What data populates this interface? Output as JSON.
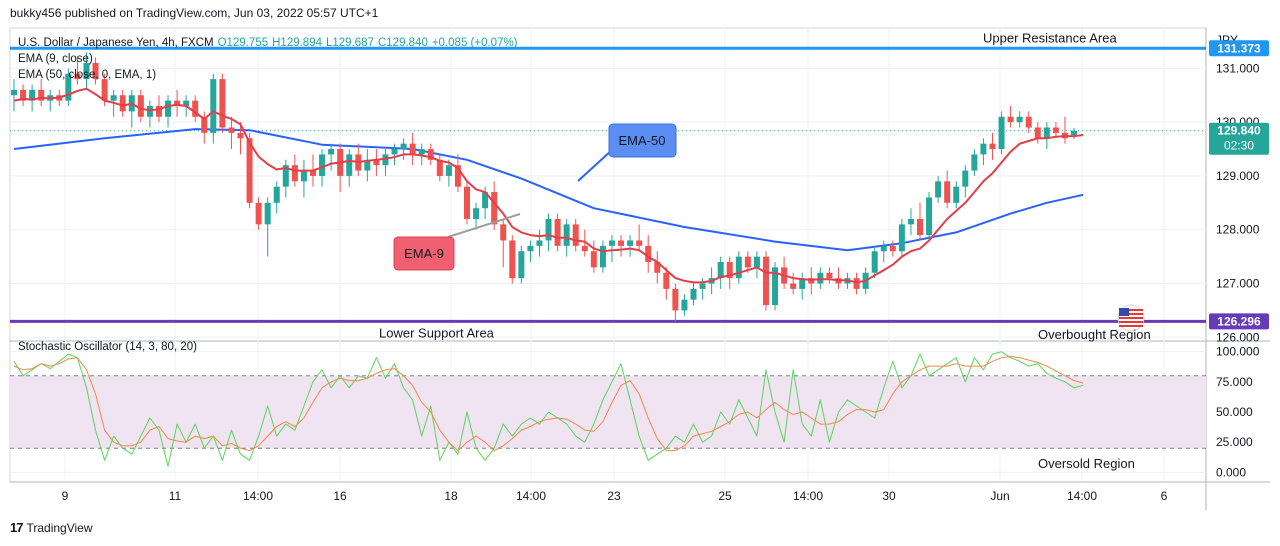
{
  "publisher_line": "bukky456 published on TradingView.com, Jun 03, 2022 05:57 UTC+1",
  "footer_brand": "TradingView",
  "colors": {
    "up": "#26a69a",
    "down": "#ef5350",
    "ema9": "#e33e4a",
    "ema50": "#2962ff",
    "resistance_line": "#2196f3",
    "support_line": "#673ab7",
    "stoch_k": "#5ad65a",
    "stoch_d": "#f2894b",
    "stoch_band": "#f0e4f2",
    "grid": "#eef0f3"
  },
  "icons": {
    "country_flag": "us-flag-icon",
    "brand": "tradingview-logo-icon"
  },
  "chart_data": [
    {
      "type": "candlestick",
      "symbol_line": {
        "name": "U.S. Dollar / Japanese Yen, 4h, FXCM",
        "open": "O129.755",
        "high": "H129.894",
        "low": "L129.687",
        "close": "C129.840",
        "change": "+0.085 (+0.07%)"
      },
      "indicators": [
        {
          "name": "EMA (9, close)",
          "label": "EMA-9"
        },
        {
          "name": "EMA (50, close, 0, EMA, 1)",
          "label": "EMA-50"
        }
      ],
      "currency": "JPY",
      "ylim": [
        125.95,
        131.75
      ],
      "y_ticks": [
        "131.000",
        "130.000",
        "129.000",
        "128.000",
        "127.000",
        "126.000"
      ],
      "x_ticks": [
        "9",
        "11",
        "14:00",
        "16",
        "18",
        "14:00",
        "23",
        "25",
        "14:00",
        "30",
        "Jun",
        "14:00",
        "6"
      ],
      "price_labels": {
        "resistance": "131.373",
        "last_price": "129.840",
        "countdown": "02:30",
        "support": "126.296"
      },
      "levels": [
        {
          "name": "Upper Resistance Area",
          "value": 131.373
        },
        {
          "name": "Lower Support Area",
          "value": 126.296
        }
      ],
      "last_price": 129.84,
      "candles": [
        [
          130.5,
          130.8,
          130.2,
          130.6
        ],
        [
          130.6,
          130.7,
          130.3,
          130.4
        ],
        [
          130.4,
          130.7,
          130.2,
          130.6
        ],
        [
          130.6,
          130.8,
          130.3,
          130.4
        ],
        [
          130.4,
          130.6,
          130.2,
          130.5
        ],
        [
          130.5,
          130.6,
          130.3,
          130.4
        ],
        [
          130.4,
          131.0,
          130.3,
          130.9
        ],
        [
          130.9,
          131.2,
          130.7,
          130.8
        ],
        [
          130.8,
          131.3,
          130.6,
          131.1
        ],
        [
          131.1,
          131.2,
          130.7,
          130.8
        ],
        [
          130.8,
          130.9,
          130.3,
          130.4
        ],
        [
          130.4,
          130.6,
          130.1,
          130.5
        ],
        [
          130.5,
          130.6,
          130.1,
          130.2
        ],
        [
          130.2,
          130.6,
          129.9,
          130.5
        ],
        [
          130.5,
          130.6,
          130.0,
          130.1
        ],
        [
          130.1,
          130.4,
          129.9,
          130.3
        ],
        [
          130.3,
          130.5,
          130.0,
          130.1
        ],
        [
          130.1,
          130.5,
          129.9,
          130.4
        ],
        [
          130.4,
          130.6,
          130.1,
          130.3
        ],
        [
          130.3,
          130.5,
          130.1,
          130.4
        ],
        [
          130.4,
          130.5,
          130.0,
          130.1
        ],
        [
          130.1,
          130.2,
          129.6,
          129.8
        ],
        [
          129.8,
          130.9,
          129.6,
          130.8
        ],
        [
          130.8,
          130.9,
          129.8,
          129.9
        ],
        [
          129.9,
          130.1,
          129.5,
          129.8
        ],
        [
          129.8,
          130.0,
          129.4,
          129.7
        ],
        [
          129.7,
          129.8,
          128.4,
          128.5
        ],
        [
          128.5,
          128.6,
          128.0,
          128.1
        ],
        [
          128.1,
          128.6,
          127.5,
          128.5
        ],
        [
          128.5,
          128.9,
          128.3,
          128.8
        ],
        [
          128.8,
          129.3,
          128.6,
          129.2
        ],
        [
          129.2,
          129.4,
          128.8,
          128.9
        ],
        [
          128.9,
          129.3,
          128.6,
          129.1
        ],
        [
          129.1,
          129.4,
          128.8,
          129.0
        ],
        [
          129.0,
          129.5,
          128.8,
          129.4
        ],
        [
          129.4,
          129.6,
          129.1,
          129.5
        ],
        [
          129.5,
          129.6,
          128.7,
          129.0
        ],
        [
          129.0,
          129.5,
          128.8,
          129.4
        ],
        [
          129.4,
          129.6,
          129.0,
          129.1
        ],
        [
          129.1,
          129.5,
          128.9,
          129.3
        ],
        [
          129.3,
          129.5,
          129.0,
          129.2
        ],
        [
          129.2,
          129.5,
          129.0,
          129.4
        ],
        [
          129.4,
          129.6,
          129.2,
          129.5
        ],
        [
          129.5,
          129.7,
          129.3,
          129.6
        ],
        [
          129.6,
          129.8,
          129.2,
          129.4
        ],
        [
          129.4,
          129.6,
          129.2,
          129.5
        ],
        [
          129.5,
          129.6,
          129.2,
          129.3
        ],
        [
          129.3,
          129.4,
          128.9,
          129.0
        ],
        [
          129.0,
          129.3,
          128.8,
          129.2
        ],
        [
          129.2,
          129.4,
          128.7,
          128.8
        ],
        [
          128.8,
          128.9,
          128.1,
          128.2
        ],
        [
          128.2,
          128.5,
          128.0,
          128.4
        ],
        [
          128.4,
          128.8,
          128.2,
          128.7
        ],
        [
          128.7,
          128.9,
          128.0,
          128.1
        ],
        [
          128.1,
          128.2,
          127.3,
          127.8
        ],
        [
          127.8,
          127.9,
          127.0,
          127.1
        ],
        [
          127.1,
          127.7,
          127.0,
          127.6
        ],
        [
          127.6,
          127.8,
          127.4,
          127.7
        ],
        [
          127.7,
          128.0,
          127.5,
          127.8
        ],
        [
          127.8,
          128.3,
          127.6,
          128.2
        ],
        [
          128.2,
          128.3,
          127.6,
          127.7
        ],
        [
          127.7,
          128.2,
          127.5,
          128.1
        ],
        [
          128.1,
          128.2,
          127.6,
          127.7
        ],
        [
          127.7,
          128.0,
          127.5,
          127.6
        ],
        [
          127.6,
          127.8,
          127.2,
          127.3
        ],
        [
          127.3,
          127.8,
          127.2,
          127.7
        ],
        [
          127.7,
          127.9,
          127.4,
          127.8
        ],
        [
          127.8,
          127.9,
          127.5,
          127.7
        ],
        [
          127.7,
          127.9,
          127.5,
          127.8
        ],
        [
          127.8,
          128.1,
          127.6,
          127.7
        ],
        [
          127.7,
          127.9,
          127.2,
          127.4
        ],
        [
          127.4,
          127.6,
          127.0,
          127.2
        ],
        [
          127.2,
          127.3,
          126.7,
          126.9
        ],
        [
          126.9,
          127.0,
          126.3,
          126.5
        ],
        [
          126.5,
          126.8,
          126.4,
          126.7
        ],
        [
          126.7,
          127.0,
          126.6,
          126.9
        ],
        [
          126.9,
          127.1,
          126.7,
          127.0
        ],
        [
          127.0,
          127.3,
          126.8,
          127.1
        ],
        [
          127.1,
          127.5,
          126.9,
          127.4
        ],
        [
          127.4,
          127.5,
          126.9,
          127.1
        ],
        [
          127.1,
          127.6,
          127.0,
          127.5
        ],
        [
          127.5,
          127.6,
          127.2,
          127.3
        ],
        [
          127.3,
          127.6,
          127.1,
          127.5
        ],
        [
          127.5,
          127.6,
          126.5,
          126.6
        ],
        [
          126.6,
          127.4,
          126.5,
          127.3
        ],
        [
          127.3,
          127.5,
          126.9,
          127.0
        ],
        [
          127.0,
          127.2,
          126.8,
          126.9
        ],
        [
          126.9,
          127.2,
          126.7,
          127.1
        ],
        [
          127.1,
          127.3,
          126.8,
          127.0
        ],
        [
          127.0,
          127.3,
          126.9,
          127.2
        ],
        [
          127.2,
          127.3,
          127.0,
          127.1
        ],
        [
          127.1,
          127.3,
          126.9,
          127.0
        ],
        [
          127.0,
          127.2,
          126.9,
          127.1
        ],
        [
          127.1,
          127.2,
          126.8,
          126.9
        ],
        [
          126.9,
          127.3,
          126.8,
          127.2
        ],
        [
          127.2,
          127.7,
          127.1,
          127.6
        ],
        [
          127.6,
          127.8,
          127.4,
          127.7
        ],
        [
          127.7,
          127.8,
          127.5,
          127.6
        ],
        [
          127.6,
          128.2,
          127.5,
          128.1
        ],
        [
          128.1,
          128.4,
          127.9,
          128.2
        ],
        [
          128.2,
          128.5,
          127.8,
          127.9
        ],
        [
          127.9,
          128.7,
          127.8,
          128.6
        ],
        [
          128.6,
          129.0,
          128.5,
          128.9
        ],
        [
          128.9,
          129.1,
          128.4,
          128.5
        ],
        [
          128.5,
          128.9,
          128.4,
          128.8
        ],
        [
          128.8,
          129.2,
          128.6,
          129.1
        ],
        [
          129.1,
          129.5,
          129.0,
          129.4
        ],
        [
          129.4,
          129.7,
          129.2,
          129.6
        ],
        [
          129.6,
          129.8,
          129.3,
          129.5
        ],
        [
          129.5,
          130.2,
          129.4,
          130.1
        ],
        [
          130.1,
          130.3,
          129.9,
          130.0
        ],
        [
          130.0,
          130.2,
          129.9,
          130.1
        ],
        [
          130.1,
          130.2,
          129.8,
          129.9
        ],
        [
          129.9,
          130.0,
          129.6,
          129.7
        ],
        [
          129.7,
          130.0,
          129.5,
          129.9
        ],
        [
          129.9,
          130.0,
          129.7,
          129.8
        ],
        [
          129.8,
          130.1,
          129.6,
          129.7
        ],
        [
          129.755,
          129.894,
          129.687,
          129.84
        ]
      ],
      "ema9": [
        130.4,
        130.43,
        130.42,
        130.45,
        130.44,
        130.46,
        130.51,
        130.58,
        130.62,
        130.52,
        130.4,
        130.36,
        130.31,
        130.34,
        130.25,
        130.22,
        130.24,
        130.3,
        130.32,
        130.3,
        130.18,
        130.06,
        130.2,
        130.12,
        130.06,
        129.96,
        129.62,
        129.36,
        129.22,
        129.12,
        129.15,
        129.1,
        129.1,
        129.1,
        129.16,
        129.23,
        129.25,
        129.28,
        129.26,
        129.28,
        129.3,
        129.32,
        129.35,
        129.4,
        129.4,
        129.38,
        129.35,
        129.28,
        129.25,
        129.15,
        128.9,
        128.75,
        128.7,
        128.5,
        128.3,
        128.05,
        127.95,
        127.9,
        127.88,
        127.9,
        127.85,
        127.85,
        127.8,
        127.78,
        127.65,
        127.6,
        127.62,
        127.63,
        127.65,
        127.62,
        127.5,
        127.4,
        127.25,
        127.1,
        127.05,
        127.02,
        127.02,
        127.05,
        127.12,
        127.15,
        127.2,
        127.25,
        127.3,
        127.2,
        127.2,
        127.15,
        127.1,
        127.08,
        127.07,
        127.08,
        127.08,
        127.06,
        127.06,
        127.02,
        127.05,
        127.15,
        127.25,
        127.35,
        127.5,
        127.6,
        127.65,
        127.8,
        128.0,
        128.2,
        128.35,
        128.5,
        128.7,
        128.9,
        129.05,
        129.25,
        129.45,
        129.6,
        129.65,
        129.7,
        129.7,
        129.73,
        129.74,
        129.74,
        129.76
      ],
      "ema50_points": [
        [
          0,
          129.5
        ],
        [
          10,
          129.7
        ],
        [
          20,
          129.87
        ],
        [
          26,
          129.85
        ],
        [
          34,
          129.58
        ],
        [
          44,
          129.5
        ],
        [
          50,
          129.3
        ],
        [
          56,
          128.95
        ],
        [
          64,
          128.4
        ],
        [
          74,
          128.05
        ],
        [
          84,
          127.78
        ],
        [
          92,
          127.62
        ],
        [
          98,
          127.75
        ],
        [
          104,
          127.95
        ],
        [
          110,
          128.3
        ],
        [
          114,
          128.5
        ],
        [
          118,
          128.65
        ]
      ]
    },
    {
      "type": "line",
      "title": "Stochastic Oscillator (14, 3, 80, 20)",
      "ylim": [
        -8,
        108
      ],
      "y_ticks": [
        "100.000",
        "75.000",
        "50.000",
        "25.000",
        "0.000"
      ],
      "bands": {
        "overbought": 80,
        "oversold": 20,
        "overbought_label": "Overbought Region",
        "oversold_label": "Oversold Region"
      },
      "series": [
        {
          "name": "%K",
          "values": [
            92,
            80,
            85,
            90,
            86,
            92,
            98,
            95,
            70,
            35,
            10,
            30,
            20,
            15,
            30,
            45,
            35,
            5,
            40,
            25,
            40,
            20,
            30,
            10,
            35,
            15,
            10,
            30,
            55,
            30,
            40,
            35,
            55,
            75,
            85,
            70,
            80,
            70,
            80,
            78,
            95,
            78,
            90,
            70,
            60,
            30,
            55,
            10,
            25,
            15,
            50,
            20,
            10,
            20,
            40,
            30,
            40,
            45,
            40,
            50,
            45,
            40,
            30,
            25,
            40,
            60,
            75,
            90,
            60,
            30,
            10,
            15,
            20,
            30,
            25,
            40,
            25,
            30,
            50,
            40,
            60,
            45,
            30,
            85,
            50,
            25,
            85,
            40,
            30,
            60,
            25,
            50,
            60,
            55,
            50,
            45,
            70,
            92,
            70,
            80,
            98,
            80,
            85,
            90,
            95,
            75,
            95,
            85,
            98,
            100,
            95,
            92,
            88,
            90,
            82,
            78,
            75,
            70,
            72
          ],
          "signal": false
        },
        {
          "name": "%D",
          "values": [
            88,
            85,
            86,
            90,
            88,
            90,
            94,
            95,
            85,
            65,
            35,
            25,
            22,
            22,
            25,
            35,
            38,
            28,
            26,
            25,
            30,
            28,
            30,
            22,
            24,
            20,
            18,
            22,
            30,
            38,
            42,
            38,
            45,
            58,
            70,
            75,
            78,
            76,
            76,
            78,
            82,
            85,
            86,
            80,
            72,
            58,
            50,
            35,
            25,
            18,
            25,
            30,
            25,
            18,
            22,
            28,
            35,
            38,
            42,
            44,
            45,
            44,
            40,
            35,
            34,
            42,
            58,
            72,
            76,
            65,
            45,
            28,
            18,
            18,
            22,
            30,
            32,
            34,
            38,
            42,
            48,
            50,
            45,
            52,
            58,
            52,
            48,
            50,
            45,
            40,
            40,
            42,
            48,
            52,
            52,
            50,
            52,
            65,
            75,
            80,
            85,
            88,
            88,
            88,
            90,
            88,
            88,
            88,
            92,
            95,
            96,
            95,
            93,
            91,
            88,
            84,
            80,
            76,
            74
          ],
          "signal": true
        }
      ]
    }
  ]
}
